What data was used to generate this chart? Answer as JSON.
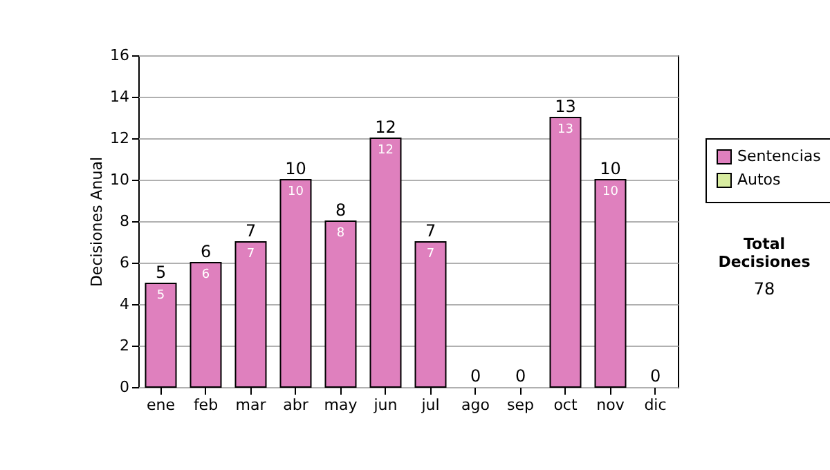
{
  "chart_data": {
    "type": "bar",
    "stacked": true,
    "ylabel": "Decisiones Anual",
    "categories": [
      "ene",
      "feb",
      "mar",
      "abr",
      "may",
      "jun",
      "jul",
      "ago",
      "sep",
      "oct",
      "nov",
      "dic"
    ],
    "series": [
      {
        "name": "Sentencias",
        "color": "#df80be",
        "values": [
          5,
          6,
          7,
          10,
          8,
          12,
          7,
          0,
          0,
          13,
          10,
          0
        ],
        "value_labels": [
          "5",
          "6",
          "7",
          "10",
          "8",
          "12",
          "7",
          null,
          null,
          "13",
          "10",
          null
        ]
      },
      {
        "name": "Autos",
        "color": "#d8eca0",
        "values": [
          0,
          0,
          0,
          0,
          0,
          0,
          0,
          0,
          0,
          0,
          0,
          0
        ]
      }
    ],
    "totals": [
      "5",
      "6",
      "7",
      "10",
      "8",
      "12",
      "7",
      "0",
      "0",
      "13",
      "10",
      "0"
    ],
    "ylim": [
      0,
      16
    ],
    "yticks": [
      0,
      2,
      4,
      6,
      8,
      10,
      12,
      14,
      16
    ],
    "grid": "y",
    "legend": "right",
    "annotations": [
      "Total Decisiones",
      "78"
    ]
  }
}
